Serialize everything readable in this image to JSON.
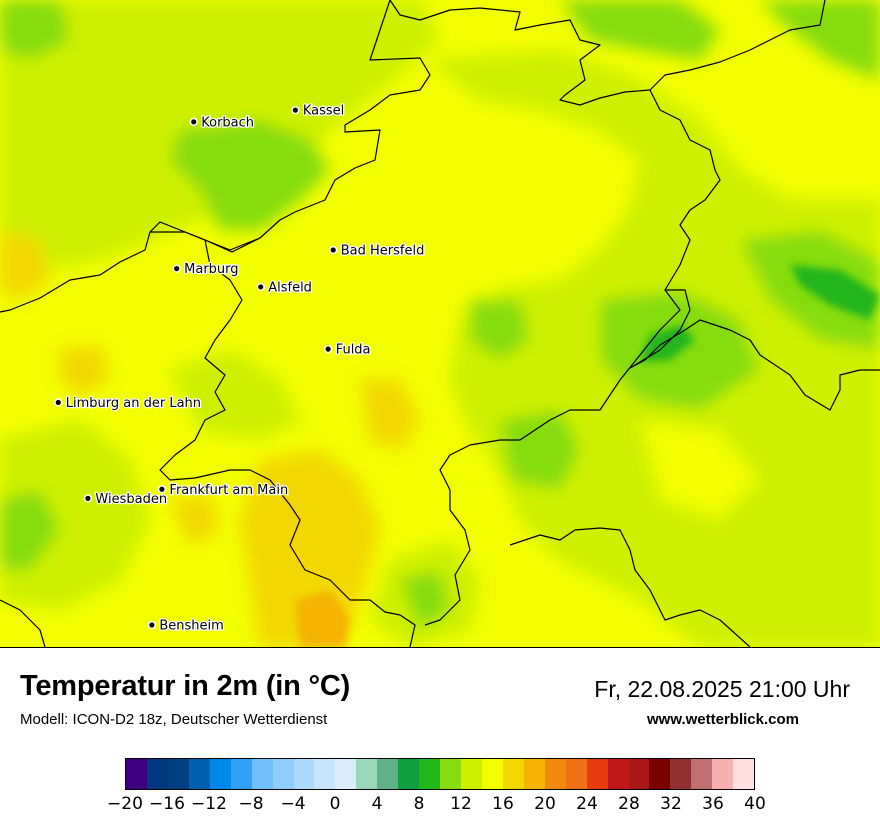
{
  "map": {
    "cities": [
      {
        "name": "Kassel",
        "lon": 9.479,
        "lat": 51.312
      },
      {
        "name": "Korbach",
        "lon": 8.872,
        "lat": 51.275
      },
      {
        "name": "Bad Hersfeld",
        "lon": 9.705,
        "lat": 50.869
      },
      {
        "name": "Marburg",
        "lon": 8.77,
        "lat": 50.81
      },
      {
        "name": "Alsfeld",
        "lon": 9.272,
        "lat": 50.752
      },
      {
        "name": "Fulda",
        "lon": 9.675,
        "lat": 50.555
      },
      {
        "name": "Limburg an der Lahn",
        "lon": 8.063,
        "lat": 50.386
      },
      {
        "name": "Frankfurt am Main",
        "lon": 8.682,
        "lat": 50.111
      },
      {
        "name": "Wiesbaden",
        "lon": 8.24,
        "lat": 50.082
      },
      {
        "name": "Bensheim",
        "lon": 8.622,
        "lat": 49.681
      }
    ],
    "field_colors": {
      "green_dark": "#22b51a",
      "green_mid": "#86dc10",
      "yellow_green": "#cdf000",
      "yellow": "#f2fd00",
      "gold": "#f2d800",
      "orange": "#f4b400"
    },
    "background_color": "#f2fd00",
    "border_color": "#000000"
  },
  "header": {
    "title": "Temperatur in 2m (in °C)",
    "model": "Modell: ICON-D2 18z, Deutscher Wetterdienst",
    "datetime": "Fr, 22.08.2025 21:00 Uhr",
    "site": "www.wetterblick.com"
  },
  "legend": {
    "colors": [
      "#3c0080",
      "#003880",
      "#004080",
      "#0060b0",
      "#0088e8",
      "#30a0f8",
      "#70c0fc",
      "#90ccfc",
      "#acd8fc",
      "#c8e4fc",
      "#dcecfc",
      "#98d8b8",
      "#60b088",
      "#10a040",
      "#22b81a",
      "#86dc10",
      "#cdf000",
      "#f2fd00",
      "#f2d800",
      "#f4b400",
      "#f28a10",
      "#f27018",
      "#e83c10",
      "#c01818",
      "#a81818",
      "#780000",
      "#903030",
      "#c07070",
      "#f8b0b0",
      "#fee0e0"
    ],
    "ticks": [
      "−20",
      "−16",
      "−12",
      "−8",
      "−4",
      "0",
      "4",
      "8",
      "12",
      "16",
      "20",
      "24",
      "28",
      "32",
      "36",
      "40"
    ],
    "min": -20,
    "max": 40
  }
}
